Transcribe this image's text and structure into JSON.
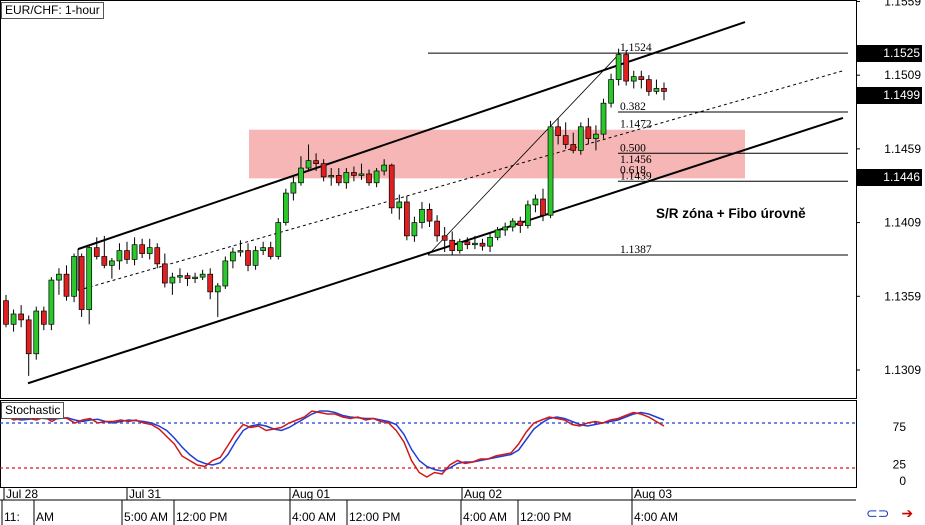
{
  "chart_data": [
    {
      "type": "candlestick",
      "title": "EUR/CHF: 1-hour",
      "y_ticks": [
        "1.1559",
        "1.1509",
        "1.1459",
        "1.1409",
        "1.1359",
        "1.1309"
      ],
      "ylim": [
        1.129,
        1.156
      ],
      "price_tags": [
        "1.1525",
        "1.1499",
        "1.1446"
      ],
      "x_ticks": [
        "Jul 28",
        "Jul 31",
        "Aug 01",
        "Aug 02",
        "Aug 03"
      ],
      "time_labels": [
        "11:",
        "AM",
        "5:00 AM",
        "12:00 PM",
        "4:00 AM",
        "12:00 PM",
        "4:00 AM",
        "12:00 PM",
        "4:00 AM"
      ],
      "sr_zone": [
        1.1439,
        1.1472
      ],
      "fib_levels": [
        {
          "label": "1.1524",
          "value": 1.1524
        },
        {
          "label": "0.382",
          "value": 1.1484
        },
        {
          "label": "1.1472",
          "value": 1.1472
        },
        {
          "label": "0.500",
          "value": 1.1456
        },
        {
          "label": "1.1456",
          "value": 1.1448
        },
        {
          "label": "0.618",
          "value": 1.1441
        },
        {
          "label": "1.1439",
          "value": 1.1437
        },
        {
          "label": "1.1387",
          "value": 1.1387
        }
      ],
      "annotation": "S/R zóna + Fibo úrovně",
      "candles": [
        [
          1.1356,
          1.136,
          1.1338,
          1.134
        ],
        [
          1.134,
          1.135,
          1.1335,
          1.1347
        ],
        [
          1.1347,
          1.1353,
          1.1338,
          1.1343
        ],
        [
          1.1343,
          1.1346,
          1.1305,
          1.132
        ],
        [
          1.132,
          1.1352,
          1.1316,
          1.1349
        ],
        [
          1.1349,
          1.1352,
          1.1336,
          1.134
        ],
        [
          1.134,
          1.1372,
          1.1336,
          1.137
        ],
        [
          1.137,
          1.1378,
          1.136,
          1.1374
        ],
        [
          1.1374,
          1.138,
          1.1356,
          1.1359
        ],
        [
          1.1359,
          1.1388,
          1.1355,
          1.1386
        ],
        [
          1.1386,
          1.1388,
          1.1345,
          1.135
        ],
        [
          1.135,
          1.1394,
          1.134,
          1.1392
        ],
        [
          1.1392,
          1.1399,
          1.1384,
          1.1386
        ],
        [
          1.1386,
          1.14,
          1.1378,
          1.138
        ],
        [
          1.138,
          1.1385,
          1.1371,
          1.1383
        ],
        [
          1.1383,
          1.1395,
          1.1377,
          1.139
        ],
        [
          1.139,
          1.1396,
          1.1381,
          1.1384
        ],
        [
          1.1384,
          1.1399,
          1.138,
          1.1394
        ],
        [
          1.1394,
          1.1398,
          1.1385,
          1.1388
        ],
        [
          1.1388,
          1.1398,
          1.1384,
          1.1392
        ],
        [
          1.1392,
          1.1395,
          1.1378,
          1.1381
        ],
        [
          1.1381,
          1.1388,
          1.1365,
          1.1368
        ],
        [
          1.1368,
          1.1375,
          1.136,
          1.1372
        ],
        [
          1.1372,
          1.1378,
          1.1368,
          1.1373
        ],
        [
          1.1373,
          1.1375,
          1.1366,
          1.1371
        ],
        [
          1.1371,
          1.1375,
          1.1368,
          1.1372
        ],
        [
          1.1372,
          1.1377,
          1.137,
          1.1374
        ],
        [
          1.1374,
          1.1378,
          1.1357,
          1.1362
        ],
        [
          1.1362,
          1.1368,
          1.1345,
          1.1366
        ],
        [
          1.1366,
          1.1386,
          1.1364,
          1.1383
        ],
        [
          1.1383,
          1.1392,
          1.1378,
          1.1389
        ],
        [
          1.1389,
          1.1397,
          1.1386,
          1.139
        ],
        [
          1.139,
          1.1395,
          1.1376,
          1.138
        ],
        [
          1.138,
          1.1393,
          1.1377,
          1.139
        ],
        [
          1.139,
          1.1396,
          1.1387,
          1.1392
        ],
        [
          1.1392,
          1.1396,
          1.1384,
          1.1386
        ],
        [
          1.1386,
          1.1412,
          1.1384,
          1.1409
        ],
        [
          1.1409,
          1.1432,
          1.1407,
          1.1429
        ],
        [
          1.1429,
          1.144,
          1.1424,
          1.1436
        ],
        [
          1.1436,
          1.1454,
          1.1434,
          1.1446
        ],
        [
          1.1446,
          1.1462,
          1.1444,
          1.1451
        ],
        [
          1.1451,
          1.1456,
          1.1444,
          1.1449
        ],
        [
          1.1449,
          1.1452,
          1.1437,
          1.144
        ],
        [
          1.144,
          1.1446,
          1.1434,
          1.1441
        ],
        [
          1.1441,
          1.1446,
          1.1434,
          1.1436
        ],
        [
          1.1436,
          1.1446,
          1.1432,
          1.1443
        ],
        [
          1.1443,
          1.1447,
          1.1437,
          1.1441
        ],
        [
          1.1441,
          1.1449,
          1.1438,
          1.1442
        ],
        [
          1.1442,
          1.1445,
          1.1434,
          1.1436
        ],
        [
          1.1436,
          1.1446,
          1.1433,
          1.1444
        ],
        [
          1.1444,
          1.1452,
          1.1441,
          1.1448
        ],
        [
          1.1448,
          1.1449,
          1.1415,
          1.1419
        ],
        [
          1.1419,
          1.1428,
          1.1411,
          1.1423
        ],
        [
          1.1423,
          1.1427,
          1.1397,
          1.14
        ],
        [
          1.14,
          1.1413,
          1.1396,
          1.1409
        ],
        [
          1.1409,
          1.1423,
          1.1405,
          1.1418
        ],
        [
          1.1418,
          1.1422,
          1.1406,
          1.141
        ],
        [
          1.141,
          1.1414,
          1.1396,
          1.14
        ],
        [
          1.14,
          1.1406,
          1.1389,
          1.1397
        ],
        [
          1.1397,
          1.1403,
          1.1387,
          1.139
        ],
        [
          1.139,
          1.1398,
          1.1388,
          1.1396
        ],
        [
          1.1396,
          1.1399,
          1.1391,
          1.1394
        ],
        [
          1.1394,
          1.14,
          1.1391,
          1.1395
        ],
        [
          1.1395,
          1.1398,
          1.139,
          1.1393
        ],
        [
          1.1393,
          1.1402,
          1.1389,
          1.1399
        ],
        [
          1.1399,
          1.1406,
          1.1397,
          1.1404
        ],
        [
          1.1404,
          1.1409,
          1.14,
          1.1406
        ],
        [
          1.1406,
          1.1412,
          1.1403,
          1.141
        ],
        [
          1.141,
          1.1413,
          1.1402,
          1.1407
        ],
        [
          1.1407,
          1.1424,
          1.1405,
          1.1421
        ],
        [
          1.1421,
          1.1428,
          1.1416,
          1.1425
        ],
        [
          1.1425,
          1.1432,
          1.141,
          1.1414
        ],
        [
          1.1414,
          1.1478,
          1.1412,
          1.1474
        ],
        [
          1.1474,
          1.148,
          1.1462,
          1.1468
        ],
        [
          1.1468,
          1.1477,
          1.1459,
          1.1462
        ],
        [
          1.1462,
          1.147,
          1.1456,
          1.1458
        ],
        [
          1.1458,
          1.1477,
          1.1455,
          1.1474
        ],
        [
          1.1474,
          1.148,
          1.1462,
          1.1466
        ],
        [
          1.1466,
          1.1475,
          1.1458,
          1.1469
        ],
        [
          1.1469,
          1.1493,
          1.1466,
          1.149
        ],
        [
          1.149,
          1.151,
          1.1487,
          1.1506
        ],
        [
          1.1506,
          1.1527,
          1.1502,
          1.1523
        ],
        [
          1.1523,
          1.1526,
          1.1502,
          1.1505
        ],
        [
          1.1505,
          1.1512,
          1.15,
          1.1508
        ],
        [
          1.1508,
          1.1512,
          1.15,
          1.1506
        ],
        [
          1.1506,
          1.1509,
          1.1495,
          1.1498
        ],
        [
          1.1498,
          1.1506,
          1.1496,
          1.15
        ],
        [
          1.15,
          1.1504,
          1.1492,
          1.1498
        ]
      ]
    },
    {
      "type": "line",
      "title": "Stochastic",
      "y_ticks": [
        "75",
        "25",
        "0"
      ],
      "ylim": [
        0,
        100
      ],
      "levels": [
        80,
        20
      ],
      "series": [
        {
          "color": "#1f3fd6",
          "values": [
            88,
            86,
            84,
            85,
            87,
            86,
            85,
            86,
            87,
            84,
            82,
            84,
            85,
            82,
            80,
            82,
            84,
            83,
            82,
            80,
            76,
            70,
            60,
            48,
            38,
            30,
            26,
            24,
            27,
            38,
            55,
            70,
            76,
            78,
            76,
            72,
            70,
            74,
            80,
            86,
            92,
            96,
            96,
            94,
            90,
            88,
            87,
            86,
            86,
            84,
            82,
            78,
            65,
            45,
            30,
            22,
            18,
            16,
            20,
            26,
            28,
            28,
            30,
            32,
            34,
            36,
            38,
            44,
            58,
            72,
            80,
            86,
            88,
            86,
            82,
            78,
            76,
            78,
            80,
            82,
            84,
            88,
            92,
            94,
            92,
            88,
            84
          ]
        },
        {
          "color": "#d01818",
          "values": [
            90,
            84,
            86,
            86,
            84,
            88,
            82,
            88,
            86,
            80,
            84,
            86,
            80,
            82,
            82,
            84,
            82,
            84,
            80,
            78,
            72,
            62,
            52,
            36,
            30,
            24,
            22,
            30,
            34,
            50,
            66,
            78,
            74,
            76,
            70,
            72,
            74,
            80,
            84,
            88,
            96,
            94,
            92,
            92,
            88,
            86,
            88,
            84,
            86,
            82,
            80,
            70,
            55,
            30,
            14,
            8,
            14,
            12,
            24,
            30,
            26,
            28,
            32,
            32,
            36,
            38,
            40,
            52,
            68,
            80,
            84,
            88,
            86,
            84,
            78,
            76,
            80,
            82,
            80,
            84,
            86,
            90,
            94,
            92,
            88,
            82,
            76
          ]
        }
      ]
    }
  ]
}
